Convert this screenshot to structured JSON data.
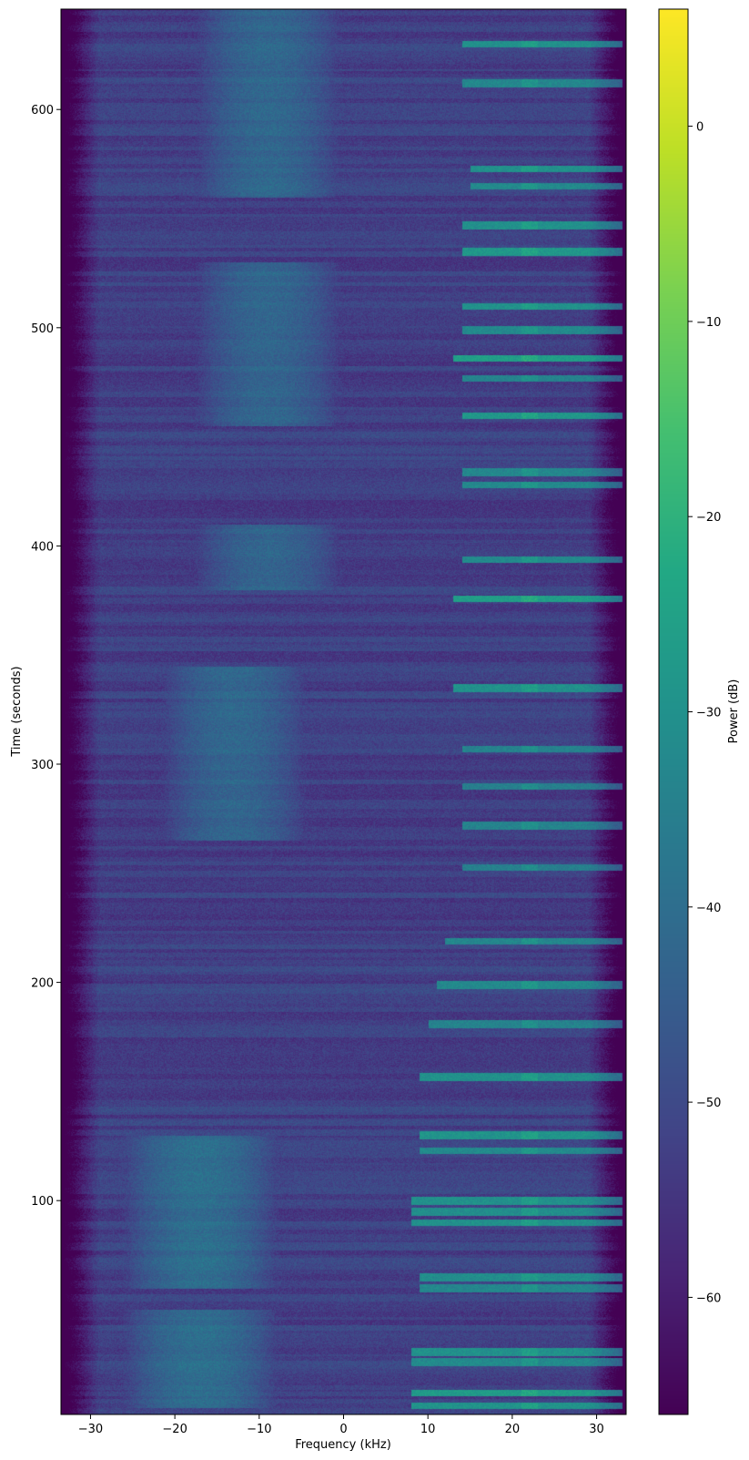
{
  "chart_data": {
    "type": "heatmap",
    "title": "",
    "xlabel": "Frequency (kHz)",
    "ylabel": "Time (seconds)",
    "colorbar_label": "Power (dB)",
    "colormap": "viridis",
    "xlim": [
      -33.5,
      33.5
    ],
    "ylim": [
      2,
      646
    ],
    "clim": [
      -66,
      6
    ],
    "x_ticks": [
      -30,
      -20,
      -10,
      0,
      10,
      20,
      30
    ],
    "x_tick_labels": [
      "−30",
      "−20",
      "−10",
      "0",
      "10",
      "20",
      "30"
    ],
    "y_ticks": [
      100,
      200,
      300,
      400,
      500,
      600
    ],
    "y_tick_labels": [
      "100",
      "200",
      "300",
      "400",
      "500",
      "600"
    ],
    "colorbar_ticks": [
      0,
      -10,
      -20,
      -30,
      -40,
      -50,
      -60
    ],
    "colorbar_tick_labels": [
      "0",
      "−10",
      "−20",
      "−30",
      "−40",
      "−50",
      "−60"
    ],
    "baseline_power_db": -52,
    "edge_rolloff_khz": 29,
    "bursts": [
      {
        "t": 630,
        "f_min": 14,
        "f_max": 33,
        "power_db": -30
      },
      {
        "t": 612,
        "f_min": 14,
        "f_max": 33,
        "power_db": -33
      },
      {
        "t": 573,
        "f_min": 15,
        "f_max": 33,
        "power_db": -30
      },
      {
        "t": 565,
        "f_min": 15,
        "f_max": 33,
        "power_db": -32
      },
      {
        "t": 547,
        "f_min": 14,
        "f_max": 33,
        "power_db": -30
      },
      {
        "t": 535,
        "f_min": 14,
        "f_max": 33,
        "power_db": -28
      },
      {
        "t": 510,
        "f_min": 14,
        "f_max": 33,
        "power_db": -30
      },
      {
        "t": 499,
        "f_min": 14,
        "f_max": 33,
        "power_db": -32
      },
      {
        "t": 486,
        "f_min": 13,
        "f_max": 33,
        "power_db": -26
      },
      {
        "t": 477,
        "f_min": 14,
        "f_max": 33,
        "power_db": -34
      },
      {
        "t": 460,
        "f_min": 14,
        "f_max": 33,
        "power_db": -28
      },
      {
        "t": 434,
        "f_min": 14,
        "f_max": 33,
        "power_db": -33
      },
      {
        "t": 428,
        "f_min": 14,
        "f_max": 33,
        "power_db": -32
      },
      {
        "t": 394,
        "f_min": 14,
        "f_max": 33,
        "power_db": -32
      },
      {
        "t": 376,
        "f_min": 13,
        "f_max": 33,
        "power_db": -26
      },
      {
        "t": 335,
        "f_min": 13,
        "f_max": 33,
        "power_db": -30
      },
      {
        "t": 307,
        "f_min": 14,
        "f_max": 33,
        "power_db": -34
      },
      {
        "t": 290,
        "f_min": 14,
        "f_max": 33,
        "power_db": -35
      },
      {
        "t": 272,
        "f_min": 14,
        "f_max": 33,
        "power_db": -34
      },
      {
        "t": 253,
        "f_min": 14,
        "f_max": 33,
        "power_db": -35
      },
      {
        "t": 219,
        "f_min": 12,
        "f_max": 33,
        "power_db": -33
      },
      {
        "t": 199,
        "f_min": 11,
        "f_max": 33,
        "power_db": -32
      },
      {
        "t": 181,
        "f_min": 10,
        "f_max": 33,
        "power_db": -34
      },
      {
        "t": 157,
        "f_min": 9,
        "f_max": 33,
        "power_db": -30
      },
      {
        "t": 130,
        "f_min": 9,
        "f_max": 33,
        "power_db": -29
      },
      {
        "t": 123,
        "f_min": 9,
        "f_max": 33,
        "power_db": -32
      },
      {
        "t": 100,
        "f_min": 8,
        "f_max": 33,
        "power_db": -30
      },
      {
        "t": 95,
        "f_min": 8,
        "f_max": 33,
        "power_db": -31
      },
      {
        "t": 90,
        "f_min": 8,
        "f_max": 33,
        "power_db": -30
      },
      {
        "t": 65,
        "f_min": 9,
        "f_max": 33,
        "power_db": -31
      },
      {
        "t": 60,
        "f_min": 9,
        "f_max": 33,
        "power_db": -33
      },
      {
        "t": 31,
        "f_min": 8,
        "f_max": 33,
        "power_db": -30
      },
      {
        "t": 26,
        "f_min": 8,
        "f_max": 33,
        "power_db": -32
      },
      {
        "t": 12,
        "f_min": 8,
        "f_max": 33,
        "power_db": -27
      },
      {
        "t": 6,
        "f_min": 8,
        "f_max": 33,
        "power_db": -29
      }
    ],
    "low_band_regions": [
      {
        "t_min": 560,
        "t_max": 646,
        "f_center": -9,
        "power_db": -42
      },
      {
        "t_min": 455,
        "t_max": 530,
        "f_center": -9,
        "power_db": -42
      },
      {
        "t_min": 380,
        "t_max": 410,
        "f_center": -9,
        "power_db": -42
      },
      {
        "t_min": 265,
        "t_max": 345,
        "f_center": -13,
        "power_db": -42
      },
      {
        "t_min": 60,
        "t_max": 130,
        "f_center": -17,
        "power_db": -40
      },
      {
        "t_min": 5,
        "t_max": 50,
        "f_center": -17,
        "power_db": -40
      }
    ]
  }
}
